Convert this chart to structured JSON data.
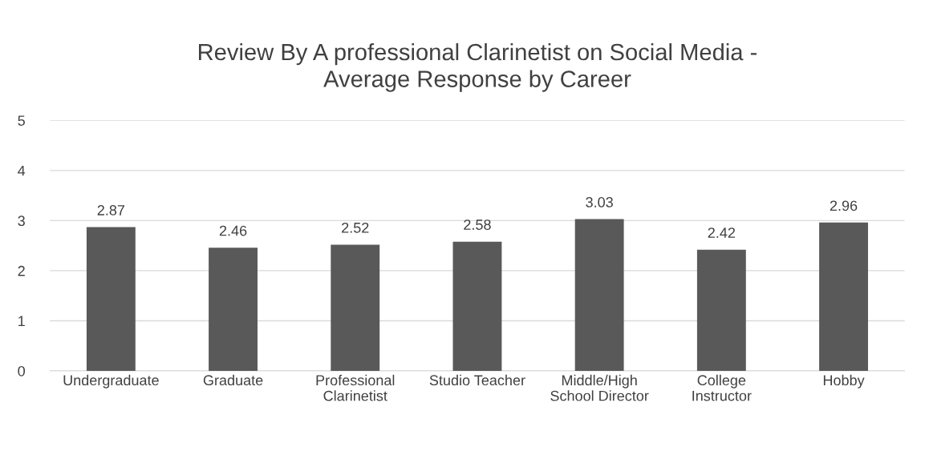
{
  "chart_data": {
    "type": "bar",
    "title": "Review By A professional Clarinetist on Social Media -\nAverage Response by Career",
    "categories": [
      "Undergraduate",
      "Graduate",
      "Professional\nClarinetist",
      "Studio Teacher",
      "Middle/High\nSchool Director",
      "College\nInstructor",
      "Hobby"
    ],
    "values": [
      2.87,
      2.46,
      2.52,
      2.58,
      3.03,
      2.42,
      2.96
    ],
    "color": "#595959",
    "ylim": [
      0,
      5
    ],
    "yticks": [
      0,
      1,
      2,
      3,
      4,
      5
    ],
    "grid": "y",
    "data_labels": true
  }
}
